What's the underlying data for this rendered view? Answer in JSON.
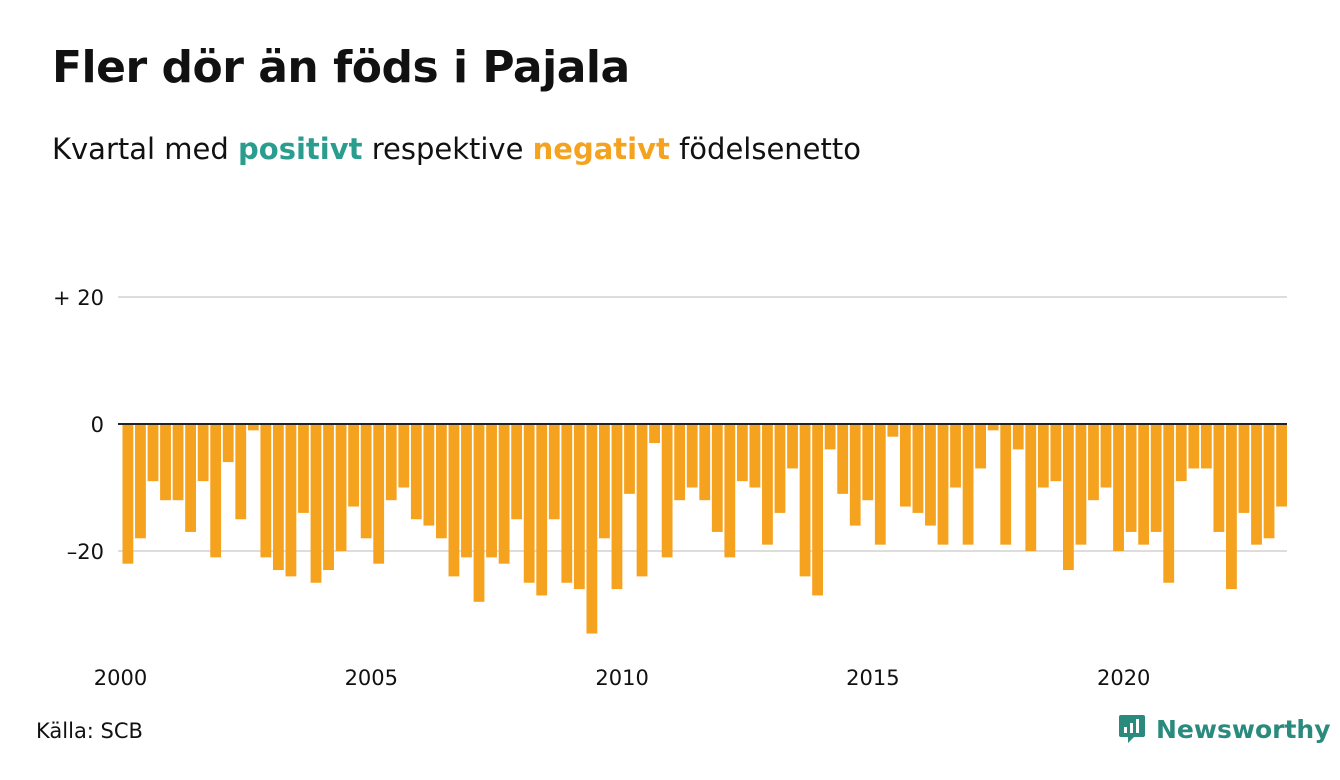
{
  "title": "Fler dör än föds i Pajala",
  "subtitle": {
    "prefix": "Kvartal med",
    "positive": "positivt",
    "middle": "respektive",
    "negative": "negativt",
    "suffix": "födelsenetto"
  },
  "source": "Källa: SCB",
  "brand": "Newsworthy",
  "colors": {
    "negative": "#f5a21f",
    "positive": "#2a9d8f",
    "grid": "#dddddd",
    "baseline": "#222222",
    "brand": "#2a8a7e"
  },
  "chart_data": {
    "type": "bar",
    "x_start": "2000 Q1",
    "x_ticks": [
      "2000",
      "2005",
      "2010",
      "2015",
      "2020"
    ],
    "y_ticks": [
      {
        "value": 20,
        "label": "+ 20"
      },
      {
        "value": 0,
        "label": "0"
      },
      {
        "value": -20,
        "label": "–20"
      }
    ],
    "ylim": [
      -35,
      20
    ],
    "grid": true,
    "values": [
      -22,
      -18,
      -9,
      -12,
      -12,
      -17,
      -9,
      -21,
      -6,
      -15,
      -1,
      -21,
      -23,
      -24,
      -14,
      -25,
      -23,
      -20,
      -13,
      -18,
      -22,
      -12,
      -10,
      -15,
      -16,
      -18,
      -24,
      -21,
      -28,
      -21,
      -22,
      -15,
      -25,
      -27,
      -15,
      -25,
      -26,
      -33,
      -18,
      -26,
      -11,
      -24,
      -3,
      -21,
      -12,
      -10,
      -12,
      -17,
      -21,
      -9,
      -10,
      -19,
      -14,
      -7,
      -24,
      -27,
      -4,
      -11,
      -16,
      -12,
      -19,
      -2,
      -13,
      -14,
      -16,
      -19,
      -10,
      -19,
      -7,
      -1,
      -19,
      -4,
      -20,
      -10,
      -9,
      -23,
      -19,
      -12,
      -10,
      -20,
      -17,
      -19,
      -17,
      -25,
      -9,
      -7,
      -7,
      -17,
      -26,
      -14,
      -19,
      -18,
      -13
    ]
  }
}
